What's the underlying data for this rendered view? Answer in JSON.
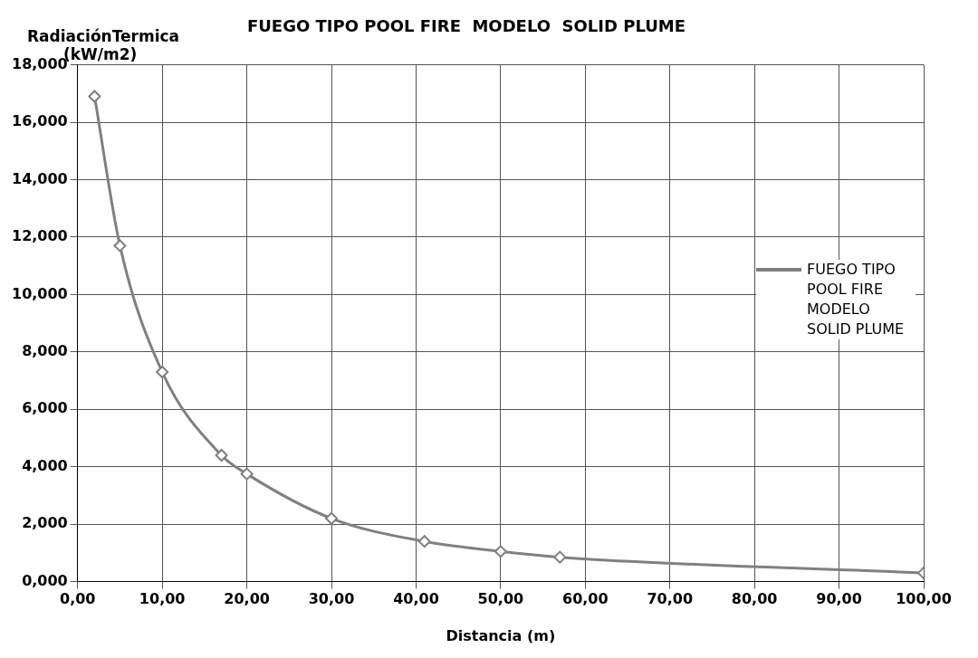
{
  "chart_data": {
    "type": "line",
    "title": "FUEGO TIPO POOL FIRE  MODELO  SOLID PLUME",
    "xlabel": "Distancia (m)",
    "ylabel": "RadiaciónTermica (kW/m2)",
    "series": [
      {
        "name": "FUEGO TIPO POOL FIRE MODELO SOLID PLUME",
        "color": "#808080",
        "x": [
          2,
          5,
          10,
          17,
          20,
          30,
          41,
          50,
          57,
          100
        ],
        "values": [
          16.9,
          11.7,
          7.3,
          4.4,
          3.75,
          2.2,
          1.4,
          1.05,
          0.85,
          0.3
        ]
      }
    ],
    "xlim": [
      0,
      100
    ],
    "xticks": [
      {
        "value": 0,
        "label": "0,00"
      },
      {
        "value": 10,
        "label": "10,00"
      },
      {
        "value": 20,
        "label": "20,00"
      },
      {
        "value": 30,
        "label": "30,00"
      },
      {
        "value": 40,
        "label": "40,00"
      },
      {
        "value": 50,
        "label": "50,00"
      },
      {
        "value": 60,
        "label": "60,00"
      },
      {
        "value": 70,
        "label": "70,00"
      },
      {
        "value": 80,
        "label": "80,00"
      },
      {
        "value": 90,
        "label": "90,00"
      },
      {
        "value": 100,
        "label": "100,00"
      }
    ],
    "ylim": [
      0,
      18
    ],
    "yticks": [
      {
        "value": 0,
        "label": "0,000"
      },
      {
        "value": 2,
        "label": "2,000"
      },
      {
        "value": 4,
        "label": "4,000"
      },
      {
        "value": 6,
        "label": "6,000"
      },
      {
        "value": 8,
        "label": "8,000"
      },
      {
        "value": 10,
        "label": "10,000"
      },
      {
        "value": 12,
        "label": "12,000"
      },
      {
        "value": 14,
        "label": "14,000"
      },
      {
        "value": 16,
        "label": "16,000"
      },
      {
        "value": 18,
        "label": "18,000"
      }
    ],
    "grid": true,
    "legend": "right",
    "marker": "diamond",
    "line_style": "solid"
  }
}
